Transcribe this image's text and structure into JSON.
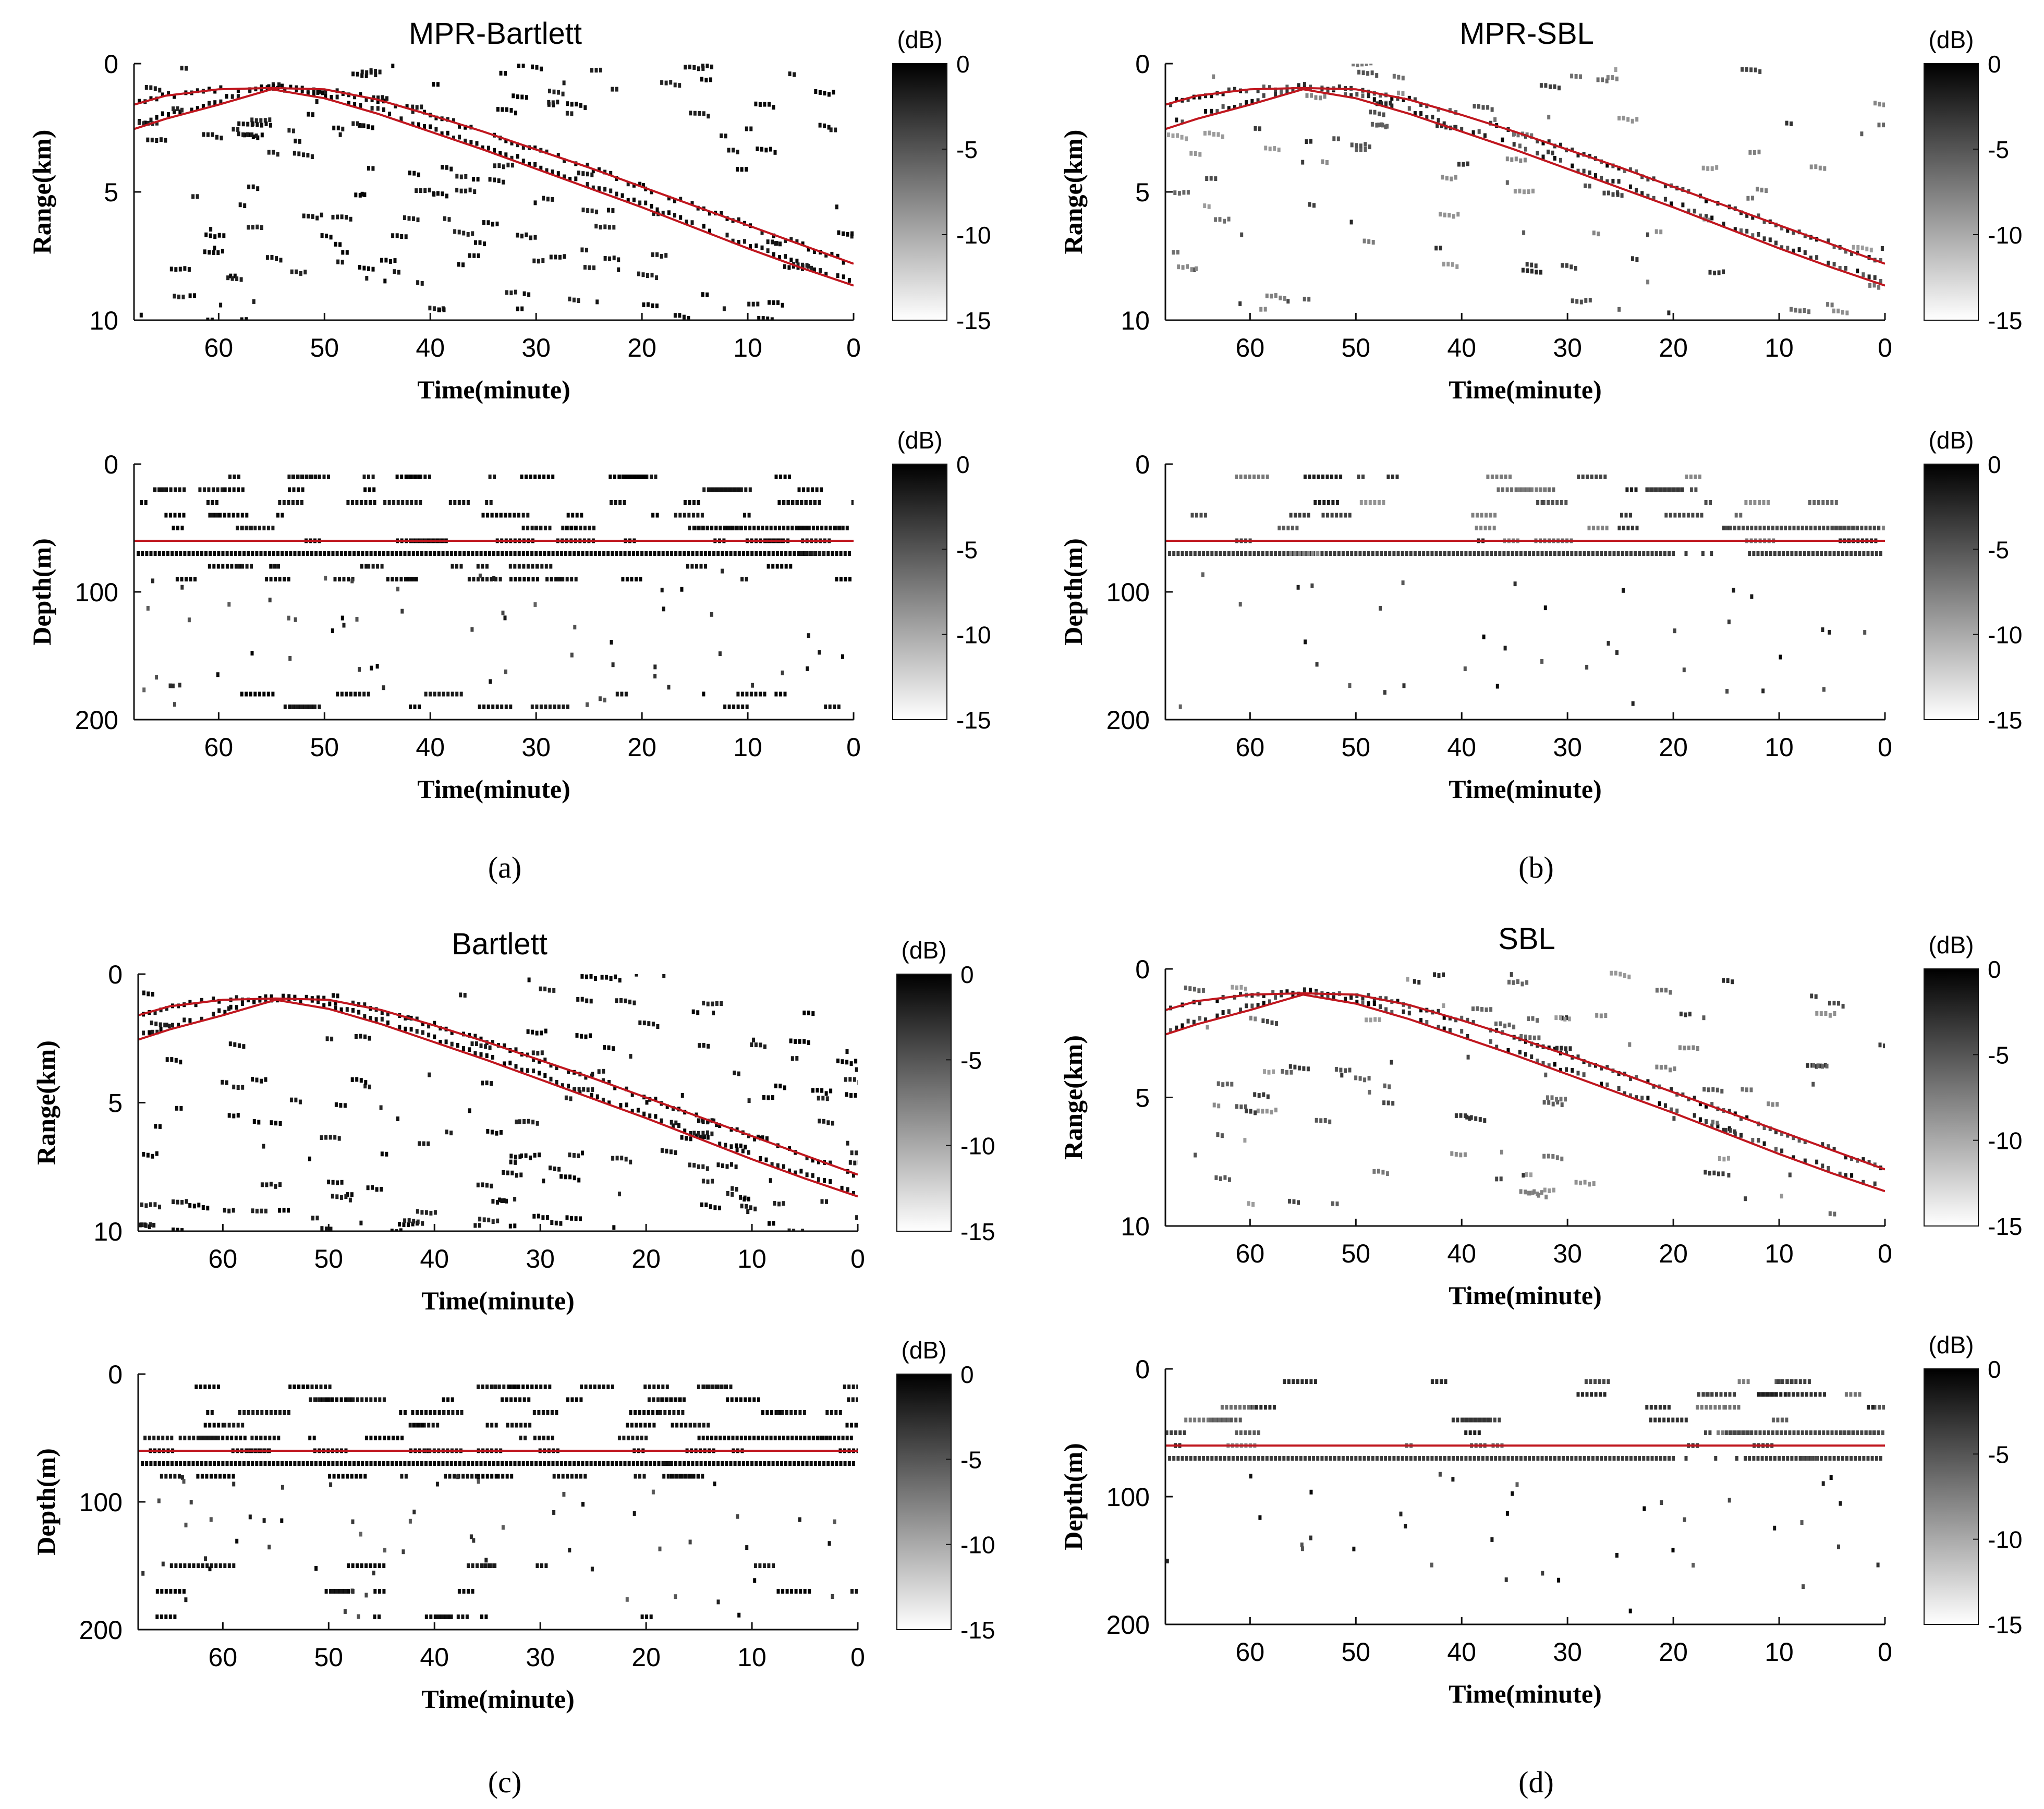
{
  "figure": {
    "captions": [
      "(a)",
      "(b)",
      "(c)",
      "(d)"
    ]
  },
  "colors": {
    "track": "#c0161e",
    "ink": "#000000",
    "axis": "#111111",
    "background": "#ffffff"
  },
  "chart_data": [
    {
      "id": "a-range",
      "panel": "a",
      "type": "heatmap",
      "kind": "range",
      "title": "MPR-Bartlett",
      "xlabel": "Time(minute)",
      "ylabel": "Range(km)",
      "xlim": [
        68,
        0
      ],
      "xticks": [
        "60",
        "50",
        "40",
        "30",
        "20",
        "10",
        "0"
      ],
      "ylim": [
        0,
        10
      ],
      "yticks": [
        "0",
        "5",
        "10"
      ],
      "colorbar": {
        "label": "(dB)",
        "ticks": [
          "0",
          "-5",
          "-10",
          "-15"
        ],
        "range": [
          -15,
          0
        ]
      },
      "track_lines": [
        {
          "name": "track-upper",
          "x": [
            68,
            65,
            60,
            55,
            50,
            45,
            40,
            35,
            30,
            25,
            20,
            15,
            10,
            5,
            0
          ],
          "y": [
            1.6,
            1.25,
            1.0,
            0.95,
            1.0,
            1.4,
            2.0,
            2.65,
            3.35,
            4.05,
            4.8,
            5.55,
            6.3,
            7.05,
            7.8
          ]
        },
        {
          "name": "track-lower",
          "x": [
            68,
            65,
            60,
            55,
            50,
            45,
            40,
            35,
            30,
            25,
            20,
            15,
            10,
            5,
            0
          ],
          "y": [
            2.55,
            2.15,
            1.6,
            1.0,
            1.35,
            1.95,
            2.65,
            3.35,
            4.1,
            4.85,
            5.6,
            6.4,
            7.2,
            7.95,
            8.65
          ]
        }
      ],
      "estimate_density": "high",
      "note": "black-dot estimates follow the track with scattered outliers across the full panel"
    },
    {
      "id": "a-depth",
      "panel": "a",
      "type": "heatmap",
      "kind": "depth",
      "title": "",
      "xlabel": "Time(minute)",
      "ylabel": "Depth(m)",
      "xlim": [
        68,
        0
      ],
      "xticks": [
        "60",
        "50",
        "40",
        "30",
        "20",
        "10",
        "0"
      ],
      "ylim": [
        0,
        200
      ],
      "yticks": [
        "0",
        "100",
        "200"
      ],
      "colorbar": {
        "label": "(dB)",
        "ticks": [
          "0",
          "-5",
          "-10",
          "-15"
        ],
        "range": [
          -15,
          0
        ]
      },
      "track_lines": [
        {
          "name": "true-depth",
          "x": [
            68,
            0
          ],
          "y": [
            60,
            60
          ]
        }
      ],
      "estimate_rows_m": [
        10,
        20,
        30,
        40,
        50,
        60,
        70,
        80,
        90,
        180,
        190
      ],
      "estimate_density": "high"
    },
    {
      "id": "b-range",
      "panel": "b",
      "type": "heatmap",
      "kind": "range",
      "title": "MPR-SBL",
      "xlabel": "Time(minute)",
      "ylabel": "Range(km)",
      "xlim": [
        68,
        0
      ],
      "xticks": [
        "60",
        "50",
        "40",
        "30",
        "20",
        "10",
        "0"
      ],
      "ylim": [
        0,
        10
      ],
      "yticks": [
        "0",
        "5",
        "10"
      ],
      "colorbar": {
        "label": "(dB)",
        "ticks": [
          "0",
          "-5",
          "-10",
          "-15"
        ],
        "range": [
          -15,
          0
        ]
      },
      "track_lines": [
        {
          "name": "track-upper",
          "x": [
            68,
            65,
            60,
            55,
            50,
            45,
            40,
            35,
            30,
            25,
            20,
            15,
            10,
            5,
            0
          ],
          "y": [
            1.6,
            1.25,
            1.0,
            0.95,
            1.0,
            1.4,
            2.0,
            2.65,
            3.35,
            4.05,
            4.8,
            5.55,
            6.3,
            7.05,
            7.8
          ]
        },
        {
          "name": "track-lower",
          "x": [
            68,
            65,
            60,
            55,
            50,
            45,
            40,
            35,
            30,
            25,
            20,
            15,
            10,
            5,
            0
          ],
          "y": [
            2.55,
            2.15,
            1.6,
            1.0,
            1.35,
            1.95,
            2.65,
            3.35,
            4.1,
            4.85,
            5.6,
            6.4,
            7.2,
            7.95,
            8.65
          ]
        }
      ],
      "estimate_density": "medium",
      "note": "estimates concentrated along the track; sparser, fainter outliers"
    },
    {
      "id": "b-depth",
      "panel": "b",
      "type": "heatmap",
      "kind": "depth",
      "title": "",
      "xlabel": "Time(minute)",
      "ylabel": "Depth(m)",
      "xlim": [
        68,
        0
      ],
      "xticks": [
        "60",
        "50",
        "40",
        "30",
        "20",
        "10",
        "0"
      ],
      "ylim": [
        0,
        200
      ],
      "yticks": [
        "0",
        "100",
        "200"
      ],
      "colorbar": {
        "label": "(dB)",
        "ticks": [
          "0",
          "-5",
          "-10",
          "-15"
        ],
        "range": [
          -15,
          0
        ]
      },
      "track_lines": [
        {
          "name": "true-depth",
          "x": [
            68,
            0
          ],
          "y": [
            60,
            60
          ]
        }
      ],
      "estimate_rows_m": [
        10,
        20,
        30,
        40,
        50,
        60,
        70
      ],
      "estimate_density": "medium"
    },
    {
      "id": "c-range",
      "panel": "c",
      "type": "heatmap",
      "kind": "range",
      "title": "Bartlett",
      "xlabel": "Time(minute)",
      "ylabel": "Range(km)",
      "xlim": [
        68,
        0
      ],
      "xticks": [
        "60",
        "50",
        "40",
        "30",
        "20",
        "10",
        "0"
      ],
      "ylim": [
        0,
        10
      ],
      "yticks": [
        "0",
        "5",
        "10"
      ],
      "colorbar": {
        "label": "(dB)",
        "ticks": [
          "0",
          "-5",
          "-10",
          "-15"
        ],
        "range": [
          -15,
          0
        ]
      },
      "track_lines": [
        {
          "name": "track-upper",
          "x": [
            68,
            65,
            60,
            55,
            50,
            45,
            40,
            35,
            30,
            25,
            20,
            15,
            10,
            5,
            0
          ],
          "y": [
            1.6,
            1.25,
            1.0,
            0.95,
            1.0,
            1.4,
            2.0,
            2.65,
            3.35,
            4.05,
            4.8,
            5.55,
            6.3,
            7.05,
            7.8
          ]
        },
        {
          "name": "track-lower",
          "x": [
            68,
            65,
            60,
            55,
            50,
            45,
            40,
            35,
            30,
            25,
            20,
            15,
            10,
            5,
            0
          ],
          "y": [
            2.55,
            2.15,
            1.6,
            1.0,
            1.35,
            1.95,
            2.65,
            3.35,
            4.1,
            4.85,
            5.6,
            6.4,
            7.2,
            7.95,
            8.65
          ]
        }
      ],
      "estimate_density": "high",
      "note": "black-dot estimates follow the track with many scattered outliers"
    },
    {
      "id": "c-depth",
      "panel": "c",
      "type": "heatmap",
      "kind": "depth",
      "title": "",
      "xlabel": "Time(minute)",
      "ylabel": "Depth(m)",
      "xlim": [
        68,
        0
      ],
      "xticks": [
        "60",
        "50",
        "40",
        "30",
        "20",
        "10",
        "0"
      ],
      "ylim": [
        0,
        200
      ],
      "yticks": [
        "0",
        "100",
        "200"
      ],
      "colorbar": {
        "label": "(dB)",
        "ticks": [
          "0",
          "-5",
          "-10",
          "-15"
        ],
        "range": [
          -15,
          0
        ]
      },
      "track_lines": [
        {
          "name": "true-depth",
          "x": [
            68,
            0
          ],
          "y": [
            60,
            60
          ]
        }
      ],
      "estimate_rows_m": [
        10,
        20,
        30,
        40,
        50,
        60,
        70,
        80,
        150,
        170,
        190
      ],
      "estimate_density": "high"
    },
    {
      "id": "d-range",
      "panel": "d",
      "type": "heatmap",
      "kind": "range",
      "title": "SBL",
      "xlabel": "Time(minute)",
      "ylabel": "Range(km)",
      "xlim": [
        68,
        0
      ],
      "xticks": [
        "60",
        "50",
        "40",
        "30",
        "20",
        "10",
        "0"
      ],
      "ylim": [
        0,
        10
      ],
      "yticks": [
        "0",
        "5",
        "10"
      ],
      "colorbar": {
        "label": "(dB)",
        "ticks": [
          "0",
          "-5",
          "-10",
          "-15"
        ],
        "range": [
          -15,
          0
        ]
      },
      "track_lines": [
        {
          "name": "track-upper",
          "x": [
            68,
            65,
            60,
            55,
            50,
            45,
            40,
            35,
            30,
            25,
            20,
            15,
            10,
            5,
            0
          ],
          "y": [
            1.6,
            1.25,
            1.0,
            0.95,
            1.0,
            1.4,
            2.0,
            2.65,
            3.35,
            4.05,
            4.8,
            5.55,
            6.3,
            7.05,
            7.8
          ]
        },
        {
          "name": "track-lower",
          "x": [
            68,
            65,
            60,
            55,
            50,
            45,
            40,
            35,
            30,
            25,
            20,
            15,
            10,
            5,
            0
          ],
          "y": [
            2.55,
            2.15,
            1.6,
            1.0,
            1.35,
            1.95,
            2.65,
            3.35,
            4.1,
            4.85,
            5.6,
            6.4,
            7.2,
            7.95,
            8.65
          ]
        }
      ],
      "estimate_density": "medium",
      "note": "estimates concentrated along the track; sparser, fainter outliers"
    },
    {
      "id": "d-depth",
      "panel": "d",
      "type": "heatmap",
      "kind": "depth",
      "title": "",
      "xlabel": "Time(minute)",
      "ylabel": "Depth(m)",
      "xlim": [
        68,
        0
      ],
      "xticks": [
        "60",
        "50",
        "40",
        "30",
        "20",
        "10",
        "0"
      ],
      "ylim": [
        0,
        200
      ],
      "yticks": [
        "0",
        "100",
        "200"
      ],
      "colorbar": {
        "label": "(dB)",
        "ticks": [
          "0",
          "-5",
          "-10",
          "-15"
        ],
        "range": [
          -15,
          0
        ]
      },
      "track_lines": [
        {
          "name": "true-depth",
          "x": [
            68,
            0
          ],
          "y": [
            60,
            60
          ]
        }
      ],
      "estimate_rows_m": [
        10,
        20,
        30,
        40,
        50,
        60,
        70
      ],
      "estimate_density": "medium"
    }
  ]
}
